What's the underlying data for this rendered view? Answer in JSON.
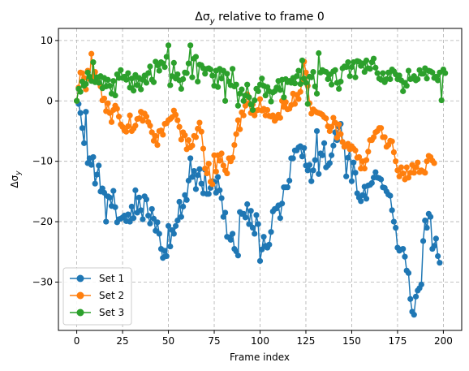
{
  "chart_data": {
    "type": "line",
    "title": "Δσ",
    "title_sub": "y",
    "title_suffix": " relative to frame 0",
    "xlabel": "Frame index",
    "ylabel": "Δσ",
    "ylabel_sub": "y",
    "xlim": [
      -10,
      210
    ],
    "ylim": [
      -38,
      12
    ],
    "xticks": [
      0,
      25,
      50,
      75,
      100,
      125,
      150,
      175,
      200
    ],
    "yticks": [
      -30,
      -20,
      -10,
      0,
      10
    ],
    "grid": true,
    "legend_position": "lower-left",
    "x_start": 0,
    "x_step": 1,
    "series": [
      {
        "name": "Set 1",
        "color": "#1f77b4",
        "values": [
          0,
          -0.5,
          -2.0,
          -4.5,
          -7.0,
          -1.8,
          -10.3,
          -9.5,
          -10.6,
          -9.3,
          -13.7,
          -12.2,
          -10.7,
          -15.0,
          -14.5,
          -15.2,
          -20.0,
          -15.8,
          -16.0,
          -17.4,
          -14.9,
          -17.6,
          -20.1,
          -19.6,
          -19.5,
          -19.3,
          -19.0,
          -19.9,
          -18.8,
          -20.0,
          -17.5,
          -19.4,
          -14.8,
          -18.5,
          -16.0,
          -18.1,
          -19.6,
          -15.8,
          -16.3,
          -19.0,
          -20.3,
          -17.9,
          -19.5,
          -21.5,
          -20.1,
          -22.0,
          -24.5,
          -26.0,
          -24.8,
          -25.7,
          -20.7,
          -24.1,
          -21.4,
          -22.0,
          -20.7,
          -19.8,
          -16.7,
          -19.2,
          -17.5,
          -15.6,
          -16.4,
          -13.2,
          -9.5,
          -12.6,
          -11.6,
          -14.6,
          -12.3,
          -11.3,
          -13.7,
          -15.3,
          -11.4,
          -15.4,
          -15.4,
          -14.4,
          -13.3,
          -13.4,
          -15.2,
          -12.6,
          -14.8,
          -16.1,
          -19.2,
          -18.5,
          -22.5,
          -22.6,
          -23.0,
          -22.0,
          -24.5,
          -24.9,
          -25.6,
          -18.4,
          -18.7,
          -18.7,
          -19.3,
          -17.1,
          -20.4,
          -18.2,
          -21.0,
          -22.0,
          -18.9,
          -20.4,
          -26.5,
          -24.6,
          -22.5,
          -24.0,
          -24.3,
          -23.8,
          -21.7,
          -18.3,
          -17.9,
          -17.8,
          -17.3,
          -19.4,
          -17.0,
          -14.3,
          -14.3,
          -14.3,
          -13.2,
          -9.5,
          -9.5,
          -8.2,
          -8.2,
          -7.7,
          -7.5,
          -9.2,
          -7.8,
          -10.7,
          -11.5,
          -10.6,
          -13.3,
          -11.5,
          -9.8,
          -5.0,
          -12.1,
          -8.7,
          -9.0,
          -7.0,
          -11.0,
          -10.7,
          -10.3,
          -9.0,
          -7.4,
          -5.2,
          -6.5,
          -4.3,
          -3.8,
          -6.8,
          -7.6,
          -12.5,
          -9.4,
          -8.0,
          -13.3,
          -10.2,
          -11.9,
          -15.3,
          -16.0,
          -16.6,
          -15.6,
          -14.2,
          -16.2,
          -14.0,
          -13.9,
          -13.6,
          -12.7,
          -11.8,
          -12.7,
          -12.8,
          -13.0,
          -14.3,
          -14.4,
          -15.0,
          -15.5,
          -15.7,
          -18.1,
          -20.0,
          -21.0,
          -24.3,
          -24.8,
          -24.6,
          -24.5,
          -25.8,
          -28.1,
          -28.5,
          -32.8,
          -34.9,
          -35.4,
          -32.4,
          -31.4,
          -31.0,
          -30.4,
          -23.2,
          -19.8,
          -21.0,
          -18.7,
          -19.2,
          -24.5,
          -24.0,
          -22.8,
          -25.7,
          -26.8
        ]
      },
      {
        "name": "Set 2",
        "color": "#ff7f0e",
        "values": [
          0,
          2.2,
          4.7,
          4.6,
          3.8,
          1.9,
          5.0,
          3.6,
          7.8,
          4.0,
          4.8,
          3.6,
          3.0,
          2.4,
          0.1,
          0.4,
          -1.7,
          -0.4,
          -2.0,
          -3.5,
          -1.5,
          -0.8,
          -1.3,
          -2.6,
          -3.9,
          -4.3,
          -4.9,
          -5.1,
          -4.2,
          -2.4,
          -5.0,
          -4.6,
          -4.1,
          -3.0,
          -2.9,
          -1.8,
          -3.3,
          -2.1,
          -2.6,
          -3.5,
          -4.1,
          -5.2,
          -6.6,
          -5.8,
          -7.3,
          -5.0,
          -4.9,
          -5.6,
          -3.8,
          -3.7,
          -3.2,
          -3.0,
          -2.7,
          -1.6,
          -2.3,
          -3.2,
          -4.3,
          -6.4,
          -5.2,
          -5.7,
          -8.0,
          -6.5,
          -7.7,
          -7.4,
          -5.8,
          -6.0,
          -4.6,
          -3.6,
          -5.1,
          -7.9,
          -11.2,
          -12.0,
          -10.4,
          -13.4,
          -13.8,
          -9.0,
          -11.7,
          -9.0,
          -9.9,
          -8.7,
          -10.7,
          -11.5,
          -12.0,
          -9.5,
          -10.0,
          -9.4,
          -7.3,
          -5.5,
          -3.2,
          -4.7,
          -1.9,
          -2.4,
          -0.8,
          1.1,
          -0.4,
          -2.0,
          -0.6,
          -2.4,
          -1.6,
          -1.5,
          0.3,
          -1.6,
          -1.3,
          -2.4,
          -1.5,
          -2.5,
          -2.6,
          -2.4,
          -3.3,
          -2.9,
          -2.3,
          -2.8,
          0.0,
          -1.0,
          -0.2,
          -1.4,
          -1.3,
          -0.7,
          1.2,
          -0.5,
          1.0,
          0.3,
          1.5,
          3.5,
          6.5,
          4.7,
          2.5,
          -0.4,
          -2.1,
          -1.4,
          -1.7,
          -1.9,
          -2.0,
          -2.1,
          -2.3,
          -2.7,
          -2.9,
          -4.2,
          -5.0,
          -4.3,
          -2.8,
          -3.6,
          -6.1,
          -3.9,
          -5.5,
          -6.8,
          -7.6,
          -7.4,
          -7.1,
          -8.0,
          -7.5,
          -7.9,
          -8.2,
          -9.4,
          -9.3,
          -11.2,
          -10.0,
          -11.2,
          -9.8,
          -8.4,
          -6.5,
          -6.5,
          -6.0,
          -5.2,
          -5.0,
          -4.5,
          -4.5,
          -6.0,
          -6.0,
          -7.6,
          -7.3,
          -6.6,
          -6.7,
          -8.5,
          -10.0,
          -11.5,
          -12.5,
          -11.0,
          -12.0,
          -13.0,
          -11.0,
          -12.7,
          -11.9,
          -10.6,
          -11.9,
          -11.0,
          -10.2,
          -11.8,
          -11.5,
          -11.7,
          -11.9,
          -10.0,
          -9.1,
          -9.3,
          -9.9,
          -10.3
        ]
      },
      {
        "name": "Set 3",
        "color": "#2ca02c",
        "values": [
          0,
          2.0,
          1.5,
          3.2,
          2.5,
          2.8,
          4.7,
          4.0,
          3.3,
          6.4,
          3.1,
          3.9,
          3.0,
          4.1,
          2.1,
          3.8,
          2.4,
          3.5,
          2.5,
          1.2,
          3.3,
          0.9,
          4.4,
          3.8,
          5.1,
          3.8,
          4.0,
          3.5,
          4.6,
          2.2,
          3.7,
          1.7,
          4.3,
          2.6,
          3.8,
          1.9,
          3.5,
          4.2,
          3.0,
          4.6,
          5.7,
          3.5,
          3.1,
          6.5,
          5.9,
          5.0,
          6.4,
          6.2,
          5.6,
          7.3,
          9.2,
          2.6,
          4.1,
          6.3,
          3.7,
          4.4,
          3.4,
          2.0,
          3.6,
          4.7,
          4.6,
          6.2,
          9.2,
          3.9,
          7.0,
          7.3,
          3.2,
          6.0,
          5.9,
          5.4,
          4.5,
          5.3,
          5.4,
          5.2,
          4.2,
          2.5,
          5.0,
          2.3,
          5.3,
          3.7,
          5.0,
          0.0,
          4.5,
          3.2,
          2.6,
          5.3,
          2.4,
          2.7,
          -0.8,
          1.2,
          1.9,
          0.0,
          0.9,
          2.7,
          0.6,
          -0.6,
          -1.5,
          0.1,
          2.0,
          1.6,
          2.7,
          3.7,
          2.5,
          0.9,
          2.3,
          1.6,
          -0.1,
          1.4,
          1.6,
          2.2,
          3.3,
          1.8,
          3.5,
          0.6,
          3.6,
          3.1,
          3.3,
          3.0,
          3.8,
          2.9,
          4.1,
          5.0,
          2.8,
          6.7,
          3.7,
          3.0,
          -0.5,
          4.0,
          3.9,
          4.8,
          2.4,
          1.2,
          7.9,
          4.7,
          5.1,
          4.9,
          4.8,
          3.6,
          4.4,
          2.7,
          4.9,
          5.1,
          3.0,
          2.0,
          3.2,
          5.4,
          5.7,
          5.6,
          6.4,
          4.1,
          5.6,
          6.4,
          3.9,
          6.6,
          6.5,
          5.8,
          6.2,
          4.8,
          6.7,
          5.4,
          5.3,
          6.4,
          7.0,
          5.5,
          4.6,
          3.7,
          3.5,
          4.6,
          3.1,
          3.6,
          4.7,
          3.6,
          5.2,
          4.9,
          4.4,
          3.6,
          4.2,
          3.4,
          1.6,
          3.0,
          2.5,
          5.0,
          3.6,
          3.7,
          4.1,
          3.4,
          3.6,
          5.1,
          4.5,
          4.5,
          5.4,
          3.7,
          5.0,
          4.9,
          4.7,
          3.8,
          4.0,
          3.4,
          4.7,
          0.1,
          5.2,
          4.6
        ]
      }
    ]
  }
}
